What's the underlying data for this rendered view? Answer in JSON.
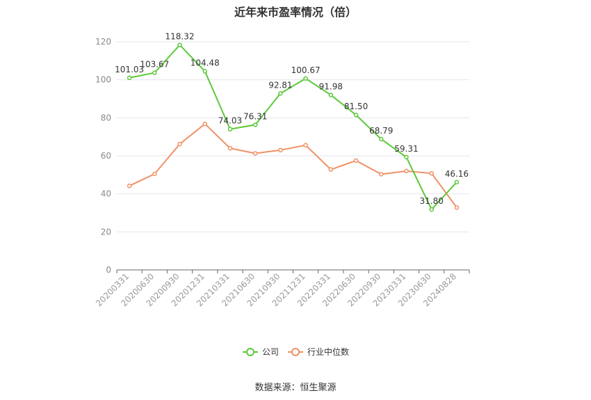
{
  "chart_data": {
    "type": "line",
    "title": "近年来市盈率情况（倍）",
    "source": "数据来源：恒生聚源",
    "xlabel": "",
    "ylabel": "",
    "ylim": [
      0,
      120
    ],
    "yticks": [
      0,
      20,
      40,
      60,
      80,
      100,
      120
    ],
    "grid": true,
    "legend_position": "bottom-center",
    "categories": [
      "20200331",
      "20200630",
      "20200930",
      "20201231",
      "20210331",
      "20210630",
      "20210930",
      "20211231",
      "20220331",
      "20220630",
      "20220930",
      "20230331",
      "20230630",
      "20240828"
    ],
    "series": [
      {
        "name": "公司",
        "color": "#5cc83a",
        "values": [
          101.03,
          103.67,
          118.32,
          104.48,
          74.03,
          76.31,
          92.81,
          100.67,
          91.98,
          81.5,
          68.79,
          59.31,
          31.8,
          46.16
        ],
        "labels": [
          "101.03",
          "103.67",
          "118.32",
          "104.48",
          "74.03",
          "76.31",
          "92.81",
          "100.67",
          "91.98",
          "81.50",
          "68.79",
          "59.31",
          "31.80",
          "46.16"
        ]
      },
      {
        "name": "行业中位数",
        "color": "#f09064",
        "values": [
          44.2,
          50.5,
          66.2,
          76.8,
          64.0,
          61.3,
          63.0,
          65.6,
          52.8,
          57.5,
          50.3,
          52.0,
          50.8,
          32.8
        ]
      }
    ]
  }
}
